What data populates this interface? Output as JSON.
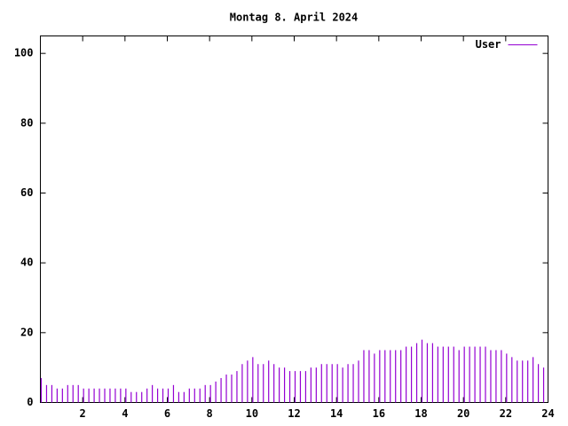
{
  "chart_data": {
    "type": "impulses",
    "title": "Montag 8. April 2024",
    "x": [
      0,
      0.25,
      0.5,
      0.75,
      1,
      1.25,
      1.5,
      1.75,
      2,
      2.25,
      2.5,
      2.75,
      3,
      3.25,
      3.5,
      3.75,
      4,
      4.25,
      4.5,
      4.75,
      5,
      5.25,
      5.5,
      5.75,
      6,
      6.25,
      6.5,
      6.75,
      7,
      7.25,
      7.5,
      7.75,
      8,
      8.25,
      8.5,
      8.75,
      9,
      9.25,
      9.5,
      9.75,
      10,
      10.25,
      10.5,
      10.75,
      11,
      11.25,
      11.5,
      11.75,
      12,
      12.25,
      12.5,
      12.75,
      13,
      13.25,
      13.5,
      13.75,
      14,
      14.25,
      14.5,
      14.75,
      15,
      15.25,
      15.5,
      15.75,
      16,
      16.25,
      16.5,
      16.75,
      17,
      17.25,
      17.5,
      17.75,
      18,
      18.25,
      18.5,
      18.75,
      19,
      19.25,
      19.5,
      19.75,
      20,
      20.25,
      20.5,
      20.75,
      21,
      21.25,
      21.5,
      21.75,
      22,
      22.25,
      22.5,
      22.75,
      23,
      23.25,
      23.5,
      23.75
    ],
    "series": [
      {
        "name": "User",
        "color": "#9400d3",
        "values": [
          7,
          5,
          5,
          4,
          4,
          5,
          5,
          5,
          4,
          4,
          4,
          4,
          4,
          4,
          4,
          4,
          4,
          3,
          3,
          3,
          4,
          5,
          4,
          4,
          4,
          5,
          3,
          3,
          4,
          4,
          4,
          5,
          5,
          6,
          7,
          8,
          8,
          9,
          11,
          12,
          13,
          11,
          11,
          12,
          11,
          10,
          10,
          9,
          9,
          9,
          9,
          10,
          10,
          11,
          11,
          11,
          11,
          10,
          11,
          11,
          12,
          15,
          15,
          14,
          15,
          15,
          15,
          15,
          15,
          16,
          16,
          17,
          18,
          17,
          17,
          16,
          16,
          16,
          16,
          15,
          16,
          16,
          16,
          16,
          16,
          15,
          15,
          15,
          14,
          13,
          12,
          12,
          12,
          13,
          11,
          10
        ]
      }
    ],
    "xlim": [
      0,
      24
    ],
    "xticks": [
      2,
      4,
      6,
      8,
      10,
      12,
      14,
      16,
      18,
      20,
      22,
      24
    ],
    "ylim": [
      0,
      105
    ],
    "yticks": [
      0,
      20,
      40,
      60,
      80,
      100
    ],
    "legend": "top-right"
  }
}
